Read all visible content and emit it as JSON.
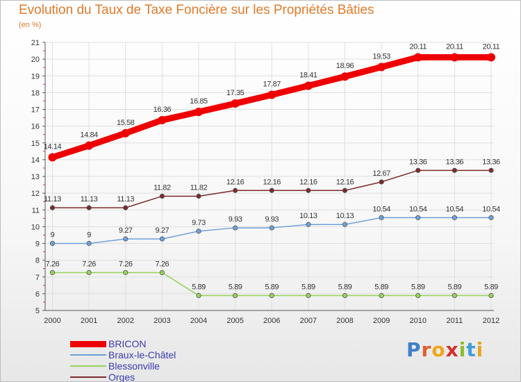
{
  "header": {
    "title": "Evolution du Taux de Taxe Foncière sur les Propriétés Bâties",
    "subtitle": "(en %)"
  },
  "logo": {
    "text": "Proxiti",
    "letters": [
      "P",
      "r",
      "o",
      "x",
      "i",
      "t",
      "i"
    ],
    "colors": [
      "#3f7fc8",
      "#e05d2d",
      "#f0a51a",
      "#d2302a",
      "#8bbd2b",
      "#3f9ed8",
      "#e8a522"
    ]
  },
  "chart_data": {
    "type": "line",
    "title": "Evolution du Taux de Taxe Foncière sur les Propriétés Bâties",
    "ylabel": "(en %)",
    "xlabel": "",
    "x": [
      "2000",
      "2001",
      "2002",
      "2003",
      "2004",
      "2005",
      "2006",
      "2007",
      "2008",
      "2009",
      "2010",
      "2011",
      "2012"
    ],
    "yticks": [
      "5",
      "6",
      "7",
      "8",
      "9",
      "10",
      "11",
      "12",
      "13",
      "14",
      "15",
      "16",
      "17",
      "18",
      "19",
      "20",
      "21"
    ],
    "ylim": [
      5,
      21
    ],
    "grid": true,
    "legend_position": "bottom-left",
    "series": [
      {
        "name": "BRICON",
        "color": "#ee0000",
        "values": [
          14.14,
          14.84,
          15.58,
          16.36,
          16.85,
          17.35,
          17.87,
          18.41,
          18.96,
          19.53,
          20.11,
          20.11,
          20.11
        ],
        "labels": [
          "14.14",
          "14.84",
          "15.58",
          "16.36",
          "16.85",
          "17.35",
          "17.87",
          "18.41",
          "18.96",
          "19.53",
          "20.11",
          "20.11",
          "20.11"
        ]
      },
      {
        "name": "Braux-le-Châtel",
        "color": "#6fa0d8",
        "values": [
          9,
          9,
          9.27,
          9.27,
          9.73,
          9.93,
          9.93,
          10.13,
          10.13,
          10.54,
          10.54,
          10.54,
          10.54
        ],
        "labels": [
          "9",
          "9",
          "9.27",
          "9.27",
          "9.73",
          "9.93",
          "9.93",
          "10.13",
          "10.13",
          "10.54",
          "10.54",
          "10.54",
          "10.54"
        ]
      },
      {
        "name": "Blessonville",
        "color": "#96d25a",
        "values": [
          7.26,
          7.26,
          7.26,
          7.26,
          5.89,
          5.89,
          5.89,
          5.89,
          5.89,
          5.89,
          5.89,
          5.89,
          5.89
        ],
        "labels": [
          "7.26",
          "7.26",
          "7.26",
          "7.26",
          "5.89",
          "5.89",
          "5.89",
          "5.89",
          "5.89",
          "5.89",
          "5.89",
          "5.89",
          "5.89"
        ]
      },
      {
        "name": "Orges",
        "color": "#7a2a2a",
        "values": [
          11.13,
          11.13,
          11.13,
          11.82,
          11.82,
          12.16,
          12.16,
          12.16,
          12.16,
          12.67,
          13.36,
          13.36,
          13.36
        ],
        "labels": [
          "11.13",
          "11.13",
          "11.13",
          "11.82",
          "11.82",
          "12.16",
          "12.16",
          "12.16",
          "12.16",
          "12.67",
          "13.36",
          "13.36",
          "13.36"
        ]
      }
    ]
  }
}
